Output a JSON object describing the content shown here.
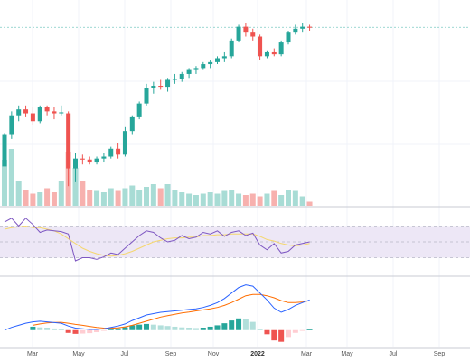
{
  "chart_data": {
    "type": "candlestick",
    "x_axis": {
      "tick_labels": [
        "Mar",
        "May",
        "Jul",
        "Sep",
        "Nov",
        "2022",
        "Mar",
        "May",
        "Jul",
        "Sep"
      ],
      "bold_labels": [
        "2022"
      ]
    },
    "colors": {
      "up": "#26a69a",
      "down": "#ef5350",
      "volume_up": "#a8dcd5",
      "volume_down": "#f7b1ae",
      "rsi_line": "#7e57c2",
      "rsi_ma": "#f5d76e",
      "rsi_band": "#ede7f6",
      "macd_line": "#2962ff",
      "signal_line": "#ff6d00",
      "hist_up_strong": "#26a69a",
      "hist_up_weak": "#b2dfdb",
      "hist_down_strong": "#ef5350",
      "hist_down_weak": "#ffcdd2",
      "price_line": "#26a69a"
    },
    "price_pane": {
      "y_range": [
        0,
        100
      ],
      "price_line": 90.7,
      "candles": [
        [
          0,
          20,
          37,
          21,
          36
        ],
        [
          1,
          36,
          48,
          34,
          46
        ],
        [
          2,
          46,
          51,
          43,
          49
        ],
        [
          3,
          49,
          51,
          45,
          47
        ],
        [
          4,
          47,
          50,
          41,
          43
        ],
        [
          5,
          43,
          51,
          42,
          50
        ],
        [
          6,
          50,
          51,
          46,
          48
        ],
        [
          7,
          48,
          50,
          44,
          47
        ],
        [
          8,
          47,
          51,
          46,
          47.5
        ],
        [
          9,
          47,
          48,
          10,
          19
        ],
        [
          10,
          19,
          27,
          12,
          24
        ],
        [
          11,
          24,
          26,
          21,
          23.5
        ],
        [
          12,
          23.5,
          25,
          21,
          22
        ],
        [
          13,
          22,
          25,
          21,
          24
        ],
        [
          14,
          24,
          27,
          22,
          25
        ],
        [
          15,
          25,
          30,
          24,
          29
        ],
        [
          16,
          29,
          32,
          24,
          26
        ],
        [
          17,
          26,
          40,
          25,
          38
        ],
        [
          18,
          38,
          46,
          36,
          45
        ],
        [
          19,
          45,
          53,
          44,
          52
        ],
        [
          20,
          52,
          62,
          51,
          60
        ],
        [
          21,
          60,
          63,
          57,
          61
        ],
        [
          22,
          61,
          64,
          59,
          60.5
        ],
        [
          23,
          60.5,
          65,
          58,
          64
        ],
        [
          24,
          64,
          67,
          62,
          64.5
        ],
        [
          25,
          64.5,
          68,
          63,
          67
        ],
        [
          26,
          67,
          70,
          65,
          69
        ],
        [
          27,
          69,
          71,
          67,
          70
        ],
        [
          28,
          70,
          73,
          69,
          72
        ],
        [
          29,
          72,
          74,
          70,
          73
        ],
        [
          30,
          73,
          76,
          72,
          75
        ],
        [
          31,
          75,
          78,
          73,
          76
        ],
        [
          32,
          76,
          85,
          75,
          84
        ],
        [
          33,
          84,
          92,
          83,
          91
        ],
        [
          34,
          91,
          93,
          86,
          88
        ],
        [
          35,
          88,
          90,
          84,
          86
        ],
        [
          36,
          86,
          87,
          74,
          76
        ],
        [
          37,
          76,
          79,
          75,
          78
        ],
        [
          38,
          78,
          80,
          76,
          77
        ],
        [
          39,
          77,
          84,
          76,
          83
        ],
        [
          40,
          83,
          89,
          82,
          88
        ],
        [
          41,
          88,
          92,
          87,
          90
        ],
        [
          42,
          90,
          93,
          88,
          91
        ],
        [
          43,
          91,
          92,
          89,
          90.5
        ]
      ],
      "volume_range": [
        0,
        50
      ],
      "volume": [
        34,
        42,
        18,
        12,
        9,
        10,
        13,
        10,
        18,
        40,
        28,
        18,
        12,
        11,
        10,
        13,
        11,
        13,
        15,
        12,
        14,
        16,
        13,
        16,
        12,
        10,
        9,
        8,
        9,
        10,
        9,
        11,
        12,
        9,
        8,
        9,
        7,
        9,
        11,
        8,
        12,
        11,
        7,
        3
      ]
    },
    "rsi_pane": {
      "y_range": [
        10,
        90
      ],
      "band": [
        30,
        70
      ],
      "rsi": [
        75,
        80,
        70,
        80,
        72,
        62,
        65,
        64,
        63,
        60,
        26,
        30,
        30,
        28,
        31,
        36,
        34,
        42,
        50,
        58,
        64,
        62,
        55,
        50,
        52,
        58,
        54,
        56,
        62,
        60,
        64,
        57,
        62,
        64,
        58,
        61,
        46,
        40,
        48,
        36,
        38,
        46,
        48,
        50
      ],
      "rsi_ma": [
        66,
        68,
        69,
        70,
        68,
        68,
        66,
        64,
        60,
        54,
        48,
        42,
        38,
        35,
        33,
        32,
        33,
        35,
        38,
        42,
        46,
        50,
        52,
        54,
        55,
        55,
        56,
        56,
        58,
        58,
        59,
        59,
        60,
        60,
        60,
        60,
        57,
        53,
        51,
        48,
        46,
        45,
        46,
        48
      ]
    },
    "macd_pane": {
      "y_range": [
        -1.2,
        3.6
      ],
      "macd": [
        0.0,
        0.2,
        0.35,
        0.5,
        0.6,
        0.65,
        0.6,
        0.55,
        0.5,
        0.3,
        0.15,
        0.1,
        0.05,
        0.05,
        0.1,
        0.2,
        0.3,
        0.45,
        0.7,
        0.9,
        1.1,
        1.2,
        1.3,
        1.35,
        1.4,
        1.45,
        1.5,
        1.55,
        1.65,
        1.8,
        2.0,
        2.3,
        2.7,
        3.1,
        3.3,
        3.2,
        2.7,
        2.2,
        1.6,
        1.3,
        1.5,
        1.8,
        2.0,
        2.2
      ],
      "signal": [
        null,
        null,
        null,
        null,
        0.35,
        0.45,
        0.52,
        0.56,
        0.57,
        0.5,
        0.42,
        0.35,
        0.27,
        0.2,
        0.15,
        0.14,
        0.17,
        0.24,
        0.35,
        0.5,
        0.65,
        0.8,
        0.95,
        1.05,
        1.15,
        1.25,
        1.32,
        1.4,
        1.47,
        1.55,
        1.65,
        1.8,
        2.0,
        2.25,
        2.5,
        2.6,
        2.6,
        2.5,
        2.35,
        2.15,
        2.0,
        2.0,
        2.05,
        2.15
      ],
      "histogram": [
        null,
        null,
        null,
        null,
        0.25,
        0.2,
        0.18,
        0.12,
        0.05,
        -0.2,
        -0.27,
        -0.25,
        -0.22,
        -0.15,
        -0.05,
        0.06,
        0.13,
        0.21,
        0.35,
        0.4,
        0.45,
        0.4,
        0.35,
        0.3,
        0.25,
        0.2,
        0.18,
        0.15,
        0.18,
        0.25,
        0.35,
        0.5,
        0.7,
        0.85,
        0.8,
        0.6,
        0.1,
        -0.3,
        -0.75,
        -0.85,
        -0.5,
        -0.2,
        -0.05,
        0.05
      ]
    }
  }
}
